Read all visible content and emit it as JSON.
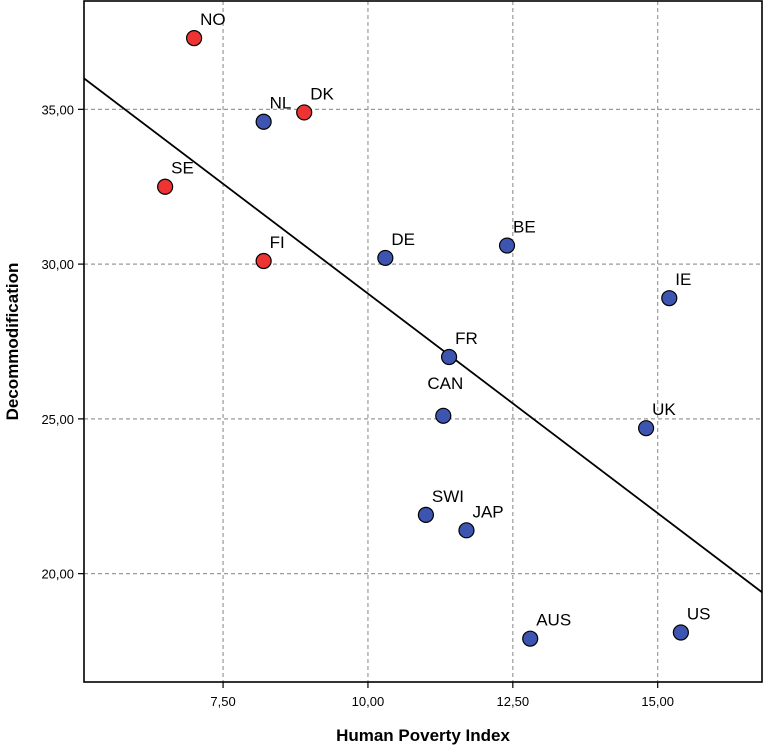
{
  "chart_data": {
    "type": "scatter",
    "xlabel": "Human Poverty Index",
    "ylabel": "Decommodification",
    "xlim": [
      5.1,
      16.8
    ],
    "ylim": [
      16.5,
      38.5
    ],
    "x_ticks": [
      7.5,
      10,
      12.5,
      15
    ],
    "x_tick_labels": [
      "7,50",
      "10,00",
      "12,50",
      "15,00"
    ],
    "y_ticks": [
      20,
      25,
      30,
      35
    ],
    "y_tick_labels": [
      "20,00",
      "25,00",
      "30,00",
      "35,00"
    ],
    "grid": true,
    "colors": {
      "nordic": "#ee3333",
      "other": "#3d55b0"
    },
    "points": [
      {
        "label": "NO",
        "x": 7.0,
        "y": 37.3,
        "group": "nordic",
        "label_pos": "upper-right"
      },
      {
        "label": "NL",
        "x": 8.2,
        "y": 34.6,
        "group": "other",
        "label_pos": "upper-right"
      },
      {
        "label": "DK",
        "x": 8.9,
        "y": 34.9,
        "group": "nordic",
        "label_pos": "upper-right"
      },
      {
        "label": "SE",
        "x": 6.5,
        "y": 32.5,
        "group": "nordic",
        "label_pos": "upper-right"
      },
      {
        "label": "FI",
        "x": 8.2,
        "y": 30.1,
        "group": "nordic",
        "label_pos": "upper-right"
      },
      {
        "label": "DE",
        "x": 10.3,
        "y": 30.2,
        "group": "other",
        "label_pos": "upper-right"
      },
      {
        "label": "BE",
        "x": 12.4,
        "y": 30.6,
        "group": "other",
        "label_pos": "upper-right"
      },
      {
        "label": "IE",
        "x": 15.2,
        "y": 28.9,
        "group": "other",
        "label_pos": "upper-right"
      },
      {
        "label": "FR",
        "x": 11.4,
        "y": 27.0,
        "group": "other",
        "label_pos": "upper-right"
      },
      {
        "label": "CAN",
        "x": 11.3,
        "y": 25.1,
        "group": "other",
        "label_pos": "upper-center"
      },
      {
        "label": "UK",
        "x": 14.8,
        "y": 24.7,
        "group": "other",
        "label_pos": "upper-right"
      },
      {
        "label": "SWI",
        "x": 11.0,
        "y": 21.9,
        "group": "other",
        "label_pos": "upper-right"
      },
      {
        "label": "JAP",
        "x": 11.7,
        "y": 21.4,
        "group": "other",
        "label_pos": "upper-right"
      },
      {
        "label": "AUS",
        "x": 12.8,
        "y": 17.9,
        "group": "other",
        "label_pos": "upper-right"
      },
      {
        "label": "US",
        "x": 15.4,
        "y": 18.1,
        "group": "other",
        "label_pos": "upper-right"
      }
    ],
    "fit_line": {
      "x": [
        5.1,
        16.8
      ],
      "y": [
        36.0,
        19.4
      ]
    }
  }
}
